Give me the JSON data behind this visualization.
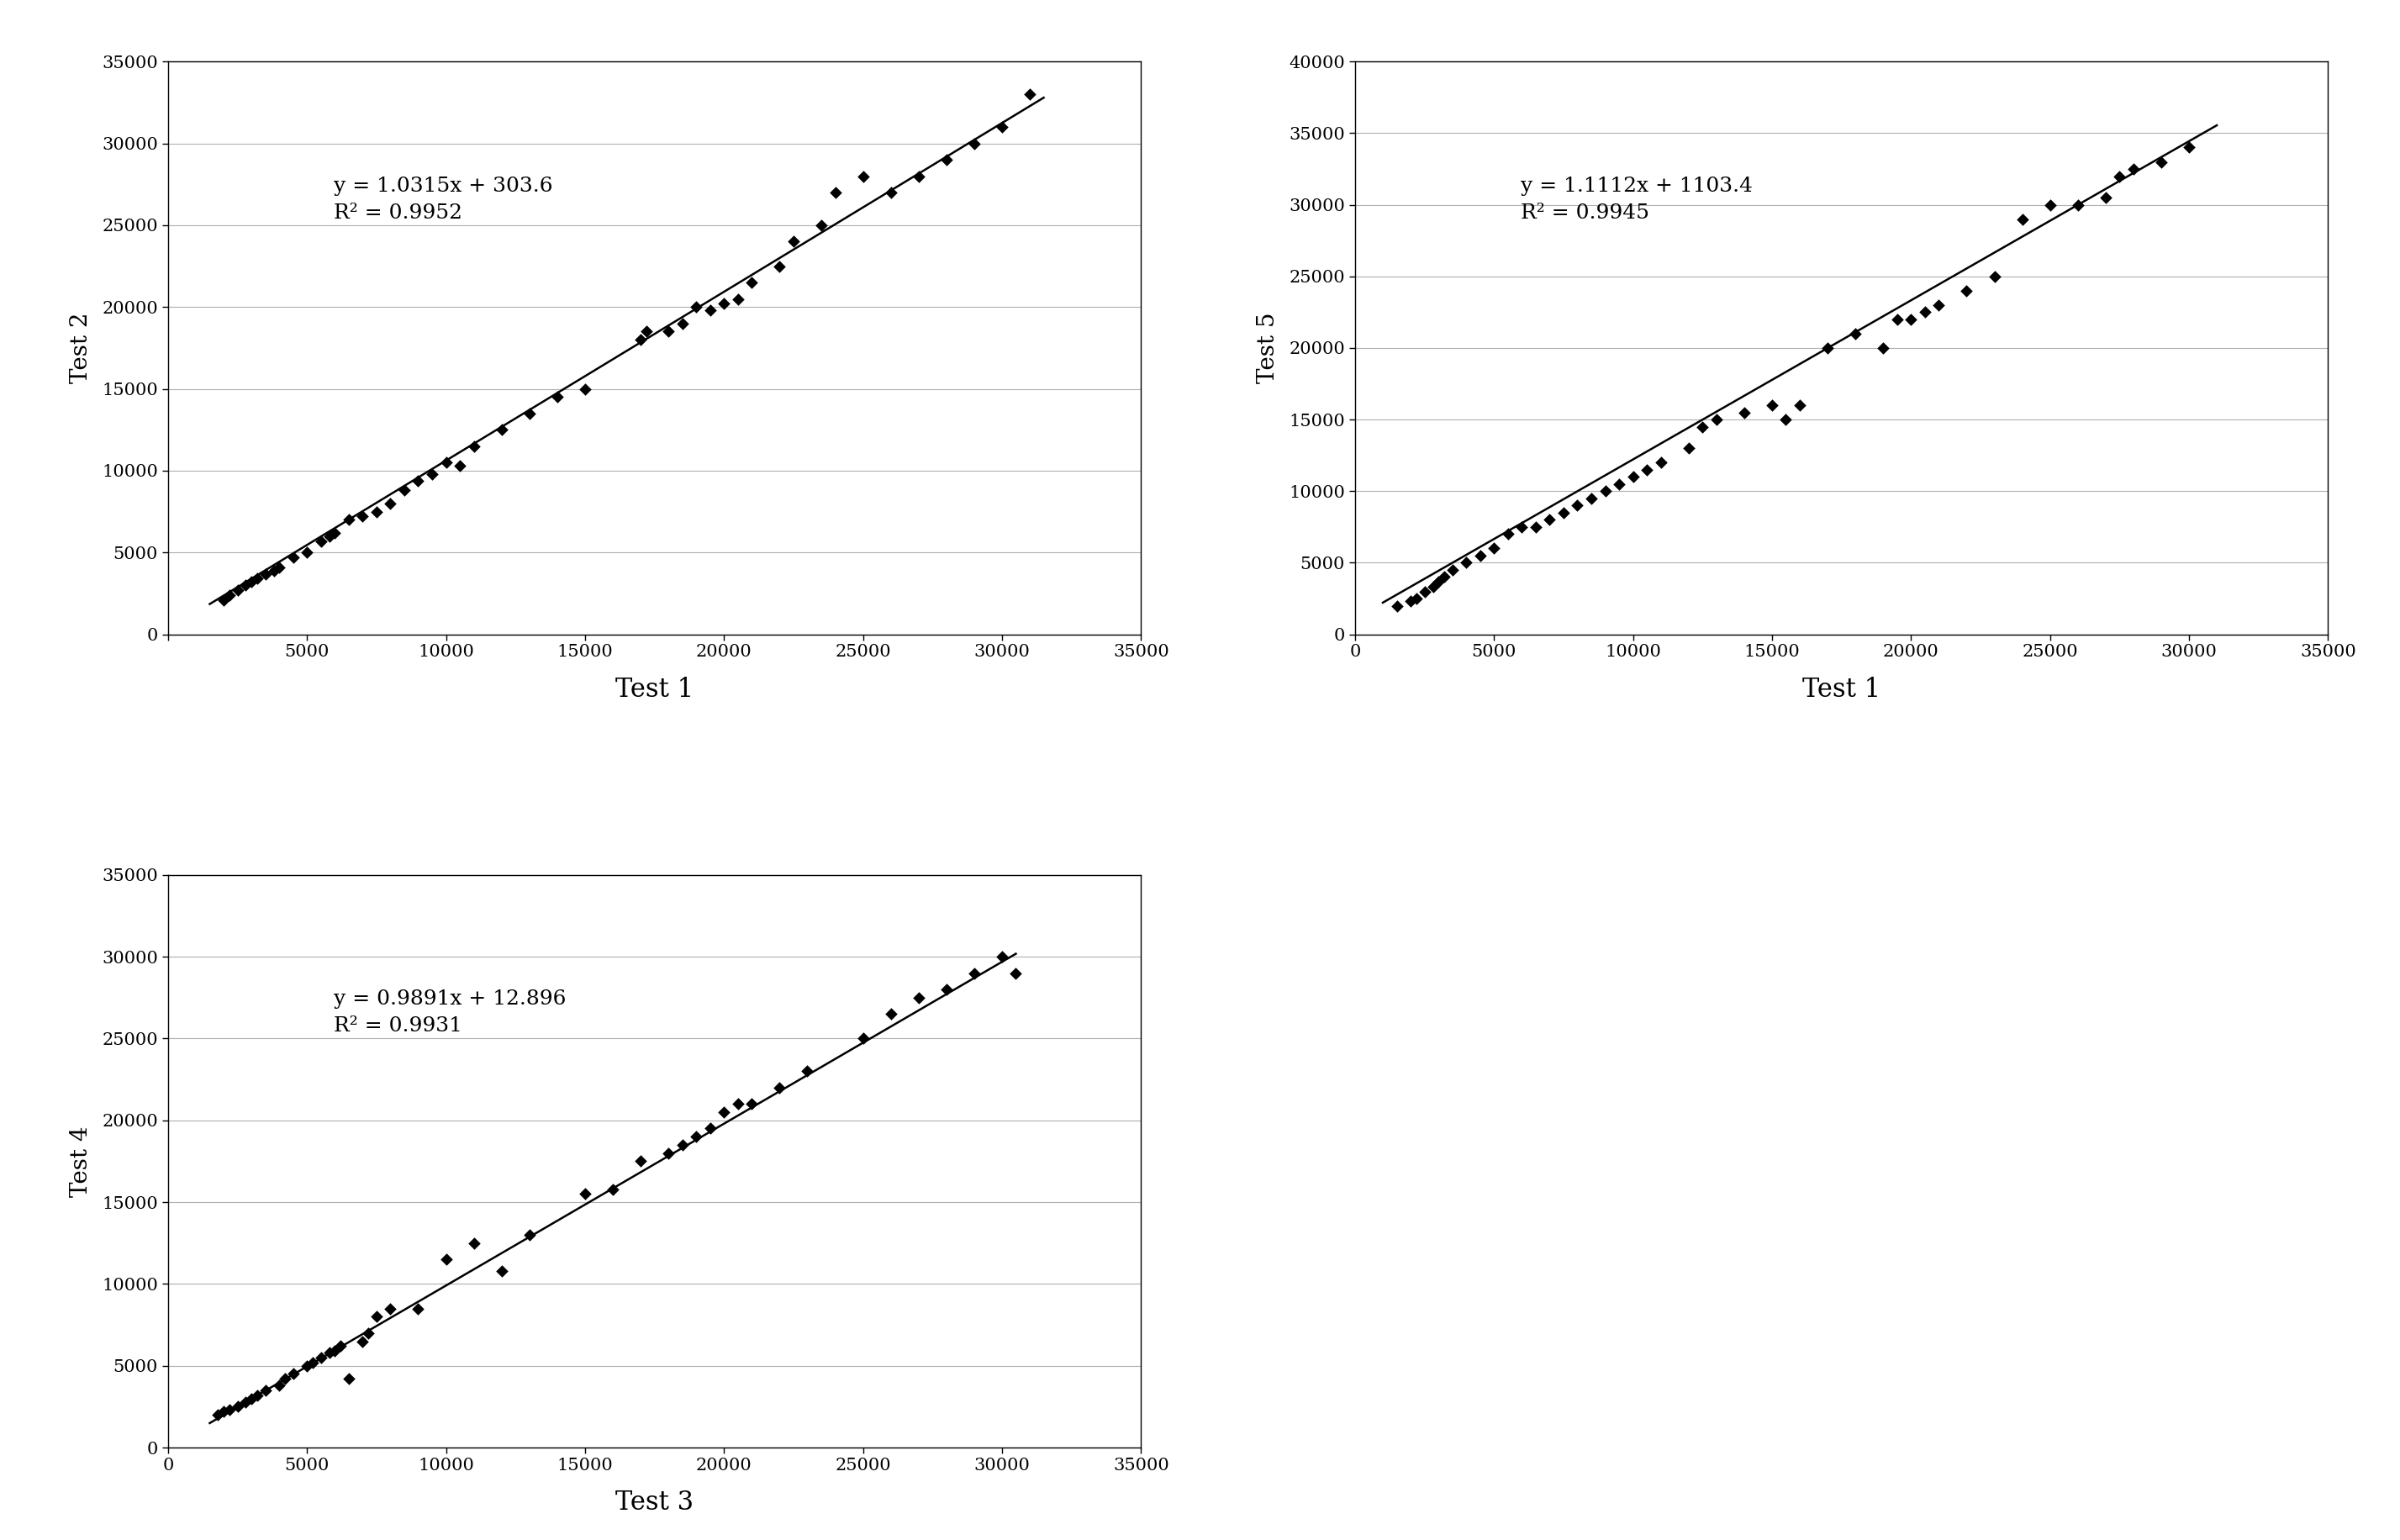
{
  "plots": [
    {
      "xlabel": "Test 1",
      "ylabel": "Test 2",
      "equation": "y = 1.0315x + 303.6",
      "r2": "R² = 0.9952",
      "slope": 1.0315,
      "intercept": 303.6,
      "xlim": [
        0,
        34000
      ],
      "ylim": [
        0,
        35000
      ],
      "xticks": [
        0,
        5000,
        10000,
        15000,
        20000,
        25000,
        30000,
        35000
      ],
      "yticks": [
        0,
        5000,
        10000,
        15000,
        20000,
        25000,
        30000,
        35000
      ],
      "xticklabels": [
        "",
        "5000",
        "10000",
        "15000",
        "20000",
        "25000",
        "30000",
        "35000"
      ],
      "yticklabels": [
        "0",
        "5000",
        "10000",
        "15000",
        "20000",
        "25000",
        "30000",
        "35000"
      ],
      "line_x": [
        1500,
        31500
      ],
      "scatter_x": [
        2000,
        2200,
        2500,
        2800,
        3000,
        3200,
        3500,
        3800,
        4000,
        4500,
        5000,
        5500,
        5800,
        6000,
        6500,
        7000,
        7500,
        8000,
        8500,
        9000,
        9500,
        10000,
        10500,
        11000,
        12000,
        13000,
        14000,
        15000,
        17000,
        17200,
        18000,
        18500,
        19000,
        19500,
        20000,
        20500,
        21000,
        22000,
        22500,
        23500,
        24000,
        25000,
        26000,
        27000,
        28000,
        29000,
        30000,
        31000
      ],
      "scatter_y": [
        2100,
        2400,
        2700,
        3000,
        3200,
        3400,
        3700,
        3900,
        4100,
        4700,
        5000,
        5700,
        6000,
        6200,
        7000,
        7200,
        7500,
        8000,
        8800,
        9400,
        9800,
        10500,
        10300,
        11500,
        12500,
        13500,
        14500,
        15000,
        18000,
        18500,
        18500,
        19000,
        20000,
        19800,
        20200,
        20500,
        21500,
        22500,
        24000,
        25000,
        27000,
        28000,
        27000,
        28000,
        29000,
        30000,
        31000,
        33000
      ]
    },
    {
      "xlabel": "Test 1",
      "ylabel": "Test 5",
      "equation": "y = 1.1112x + 1103.4",
      "r2": "R² = 0.9945",
      "slope": 1.1112,
      "intercept": 1103.4,
      "xlim": [
        0,
        34000
      ],
      "ylim": [
        0,
        40000
      ],
      "xticks": [
        0,
        5000,
        10000,
        15000,
        20000,
        25000,
        30000,
        35000
      ],
      "yticks": [
        0,
        5000,
        10000,
        15000,
        20000,
        25000,
        30000,
        35000,
        40000
      ],
      "xticklabels": [
        "0",
        "5000",
        "10000",
        "15000",
        "20000",
        "25000",
        "30000",
        "35000"
      ],
      "yticklabels": [
        "0",
        "5000",
        "10000",
        "15000",
        "20000",
        "25000",
        "30000",
        "35000",
        "40000"
      ],
      "line_x": [
        1000,
        31000
      ],
      "scatter_x": [
        1500,
        2000,
        2200,
        2500,
        2800,
        3000,
        3200,
        3500,
        4000,
        4500,
        5000,
        5500,
        6000,
        6500,
        7000,
        7500,
        8000,
        8500,
        9000,
        9500,
        10000,
        10500,
        11000,
        12000,
        12500,
        13000,
        14000,
        15000,
        15500,
        16000,
        17000,
        18000,
        19000,
        19500,
        20000,
        20500,
        21000,
        22000,
        23000,
        24000,
        25000,
        26000,
        27000,
        27500,
        28000,
        29000,
        30000
      ],
      "scatter_y": [
        2000,
        2300,
        2500,
        3000,
        3300,
        3700,
        4000,
        4500,
        5000,
        5500,
        6000,
        7000,
        7500,
        7500,
        8000,
        8500,
        9000,
        9500,
        10000,
        10500,
        11000,
        11500,
        12000,
        13000,
        14500,
        15000,
        15500,
        16000,
        15000,
        16000,
        20000,
        21000,
        20000,
        22000,
        22000,
        22500,
        23000,
        24000,
        25000,
        29000,
        30000,
        30000,
        30500,
        32000,
        32500,
        33000,
        34000
      ]
    },
    {
      "xlabel": "Test 3",
      "ylabel": "Test 4",
      "equation": "y = 0.9891x + 12.896",
      "r2": "R² = 0.9931",
      "slope": 0.9891,
      "intercept": 12.896,
      "xlim": [
        0,
        34000
      ],
      "ylim": [
        0,
        35000
      ],
      "xticks": [
        0,
        5000,
        10000,
        15000,
        20000,
        25000,
        30000,
        35000
      ],
      "yticks": [
        0,
        5000,
        10000,
        15000,
        20000,
        25000,
        30000,
        35000
      ],
      "xticklabels": [
        "0",
        "5000",
        "10000",
        "15000",
        "20000",
        "25000",
        "30000",
        "35000"
      ],
      "yticklabels": [
        "0",
        "5000",
        "10000",
        "15000",
        "20000",
        "25000",
        "30000",
        "35000"
      ],
      "line_x": [
        1500,
        30500
      ],
      "scatter_x": [
        1800,
        2000,
        2200,
        2500,
        2800,
        3000,
        3200,
        3500,
        4000,
        4200,
        4500,
        5000,
        5200,
        5500,
        5800,
        6000,
        6200,
        6500,
        7000,
        7200,
        7500,
        8000,
        9000,
        10000,
        11000,
        12000,
        13000,
        15000,
        16000,
        17000,
        18000,
        18500,
        19000,
        19500,
        20000,
        20500,
        21000,
        22000,
        23000,
        25000,
        26000,
        27000,
        28000,
        29000,
        30000,
        30500
      ],
      "scatter_y": [
        2000,
        2200,
        2300,
        2500,
        2800,
        3000,
        3200,
        3500,
        3800,
        4200,
        4500,
        5000,
        5200,
        5500,
        5800,
        5900,
        6200,
        4200,
        6500,
        7000,
        8000,
        8500,
        8500,
        11500,
        12500,
        10800,
        13000,
        15500,
        15800,
        17500,
        18000,
        18500,
        19000,
        19500,
        20500,
        21000,
        21000,
        22000,
        23000,
        25000,
        26500,
        27500,
        28000,
        29000,
        30000,
        29000
      ]
    }
  ],
  "bg_color": "#ffffff",
  "line_color": "#000000",
  "scatter_color": "#000000",
  "font_family": "DejaVu Serif",
  "xlabel_fontsize": 22,
  "ylabel_fontsize": 20,
  "tick_fontsize": 15,
  "eq_fontsize": 18,
  "grid_color": "#b0b0b0",
  "grid_linewidth": 0.8
}
